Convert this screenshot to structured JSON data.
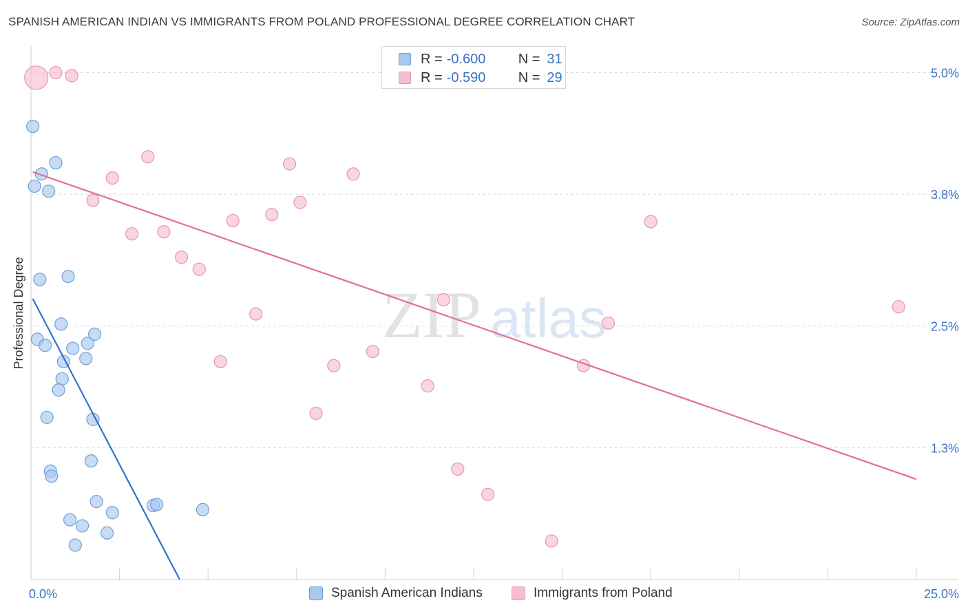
{
  "header": {
    "title": "SPANISH AMERICAN INDIAN VS IMMIGRANTS FROM POLAND PROFESSIONAL DEGREE CORRELATION CHART",
    "source": "Source: ZipAtlas.com"
  },
  "legend": {
    "rows": [
      {
        "r_label": "R =",
        "r_value": "-0.600",
        "n_label": "N =",
        "n_value": "31"
      },
      {
        "r_label": "R =",
        "r_value": "-0.590",
        "n_label": "N =",
        "n_value": "29"
      }
    ]
  },
  "bottom_legend": {
    "series1": "Spanish American Indians",
    "series2": "Immigrants from Poland"
  },
  "watermark": {
    "zip": "ZIP",
    "atlas": "atlas"
  },
  "colors": {
    "blue_fill": "#a9c8ee",
    "blue_stroke": "#6f9fd8",
    "blue_line": "#2f74c9",
    "pink_fill": "#f5bfcf",
    "pink_stroke": "#e895b0",
    "pink_line": "#e0709a",
    "tick_label": "#3b73c4"
  },
  "chart_data": {
    "type": "scatter",
    "title": "SPANISH AMERICAN INDIAN VS IMMIGRANTS FROM POLAND PROFESSIONAL DEGREE CORRELATION CHART",
    "xlabel": "",
    "ylabel": "Professional Degree",
    "xlim": [
      0,
      25
    ],
    "ylim": [
      0,
      5.2
    ],
    "x_tick_labels": [
      "0.0%",
      "25.0%"
    ],
    "y_ticks": [
      1.3,
      2.5,
      3.8,
      5.0
    ],
    "y_tick_labels": [
      "1.3%",
      "2.5%",
      "3.8%",
      "5.0%"
    ],
    "series": [
      {
        "name": "Spanish American Indians",
        "color": "blue",
        "r": -0.6,
        "n": 31,
        "trend": {
          "x1": 0.05,
          "y1": 2.77,
          "x2": 4.2,
          "y2": 0.0
        },
        "points": [
          {
            "x": 0.05,
            "y": 4.47,
            "s": 1
          },
          {
            "x": 0.7,
            "y": 4.11,
            "s": 1
          },
          {
            "x": 0.3,
            "y": 4.0,
            "s": 1
          },
          {
            "x": 0.1,
            "y": 3.88,
            "s": 1
          },
          {
            "x": 0.5,
            "y": 3.83,
            "s": 1
          },
          {
            "x": 0.25,
            "y": 2.96,
            "s": 1
          },
          {
            "x": 1.05,
            "y": 2.99,
            "s": 1
          },
          {
            "x": 0.85,
            "y": 2.52,
            "s": 1
          },
          {
            "x": 0.18,
            "y": 2.37,
            "s": 1
          },
          {
            "x": 0.4,
            "y": 2.31,
            "s": 1
          },
          {
            "x": 1.8,
            "y": 2.42,
            "s": 1
          },
          {
            "x": 1.6,
            "y": 2.33,
            "s": 1
          },
          {
            "x": 1.18,
            "y": 2.28,
            "s": 1
          },
          {
            "x": 0.92,
            "y": 2.15,
            "s": 1
          },
          {
            "x": 1.55,
            "y": 2.18,
            "s": 1
          },
          {
            "x": 0.88,
            "y": 1.98,
            "s": 1
          },
          {
            "x": 0.78,
            "y": 1.87,
            "s": 1
          },
          {
            "x": 0.45,
            "y": 1.6,
            "s": 1
          },
          {
            "x": 1.75,
            "y": 1.58,
            "s": 1
          },
          {
            "x": 1.7,
            "y": 1.17,
            "s": 1
          },
          {
            "x": 0.55,
            "y": 1.07,
            "s": 1
          },
          {
            "x": 0.58,
            "y": 1.02,
            "s": 1
          },
          {
            "x": 1.85,
            "y": 0.77,
            "s": 1
          },
          {
            "x": 3.45,
            "y": 0.73,
            "s": 1
          },
          {
            "x": 3.55,
            "y": 0.74,
            "s": 1
          },
          {
            "x": 4.85,
            "y": 0.69,
            "s": 1
          },
          {
            "x": 2.3,
            "y": 0.66,
            "s": 1
          },
          {
            "x": 1.1,
            "y": 0.59,
            "s": 1
          },
          {
            "x": 1.45,
            "y": 0.53,
            "s": 1
          },
          {
            "x": 2.15,
            "y": 0.46,
            "s": 1
          },
          {
            "x": 1.25,
            "y": 0.34,
            "s": 1
          }
        ]
      },
      {
        "name": "Immigrants from Poland",
        "color": "pink",
        "r": -0.59,
        "n": 29,
        "trend": {
          "x1": 0.05,
          "y1": 4.02,
          "x2": 25.0,
          "y2": 0.99
        },
        "points": [
          {
            "x": 0.15,
            "y": 4.95,
            "s": 2
          },
          {
            "x": 0.7,
            "y": 5.0,
            "s": 1
          },
          {
            "x": 1.15,
            "y": 4.97,
            "s": 1
          },
          {
            "x": 3.3,
            "y": 4.17,
            "s": 1
          },
          {
            "x": 2.3,
            "y": 3.96,
            "s": 1
          },
          {
            "x": 7.3,
            "y": 4.1,
            "s": 1
          },
          {
            "x": 9.1,
            "y": 4.0,
            "s": 1
          },
          {
            "x": 1.75,
            "y": 3.74,
            "s": 1
          },
          {
            "x": 7.6,
            "y": 3.72,
            "s": 1
          },
          {
            "x": 6.8,
            "y": 3.6,
            "s": 1
          },
          {
            "x": 5.7,
            "y": 3.54,
            "s": 1
          },
          {
            "x": 17.5,
            "y": 3.53,
            "s": 1
          },
          {
            "x": 2.85,
            "y": 3.41,
            "s": 1
          },
          {
            "x": 3.75,
            "y": 3.43,
            "s": 1
          },
          {
            "x": 4.25,
            "y": 3.18,
            "s": 1
          },
          {
            "x": 4.75,
            "y": 3.06,
            "s": 1
          },
          {
            "x": 6.35,
            "y": 2.62,
            "s": 1
          },
          {
            "x": 11.65,
            "y": 2.76,
            "s": 1
          },
          {
            "x": 24.5,
            "y": 2.69,
            "s": 1
          },
          {
            "x": 16.3,
            "y": 2.53,
            "s": 1
          },
          {
            "x": 9.65,
            "y": 2.25,
            "s": 1
          },
          {
            "x": 5.35,
            "y": 2.15,
            "s": 1
          },
          {
            "x": 8.55,
            "y": 2.11,
            "s": 1
          },
          {
            "x": 15.6,
            "y": 2.11,
            "s": 1
          },
          {
            "x": 11.2,
            "y": 1.91,
            "s": 1
          },
          {
            "x": 8.05,
            "y": 1.64,
            "s": 1
          },
          {
            "x": 12.05,
            "y": 1.09,
            "s": 1
          },
          {
            "x": 12.9,
            "y": 0.84,
            "s": 1
          },
          {
            "x": 14.7,
            "y": 0.38,
            "s": 1
          }
        ]
      }
    ]
  }
}
